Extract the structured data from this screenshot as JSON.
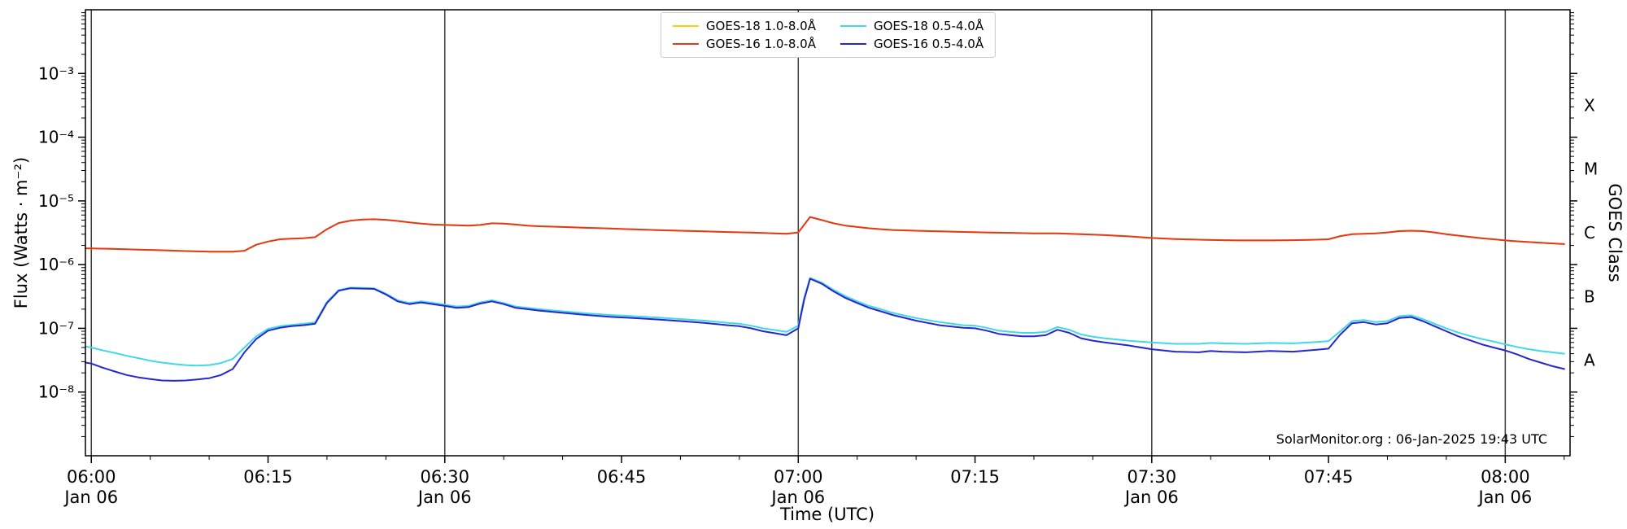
{
  "chart_data": {
    "type": "line",
    "title": "",
    "xlabel": "Time (UTC)",
    "ylabel": "Flux (Watts · m⁻²)",
    "ylabel_right": "GOES Class",
    "watermark": "SolarMonitor.org : 06-Jan-2025 19:43 UTC",
    "grid": "vertical-dividers-at-30min",
    "legend_position": "top-center",
    "x_axis": {
      "unit": "minutes after 06:00 UTC, 06-Jan-2025",
      "min": -0.5,
      "max": 125.5,
      "minor_tick_minutes": 5,
      "major_ticks": [
        {
          "t": 0,
          "label": "06:00",
          "sublabel": "Jan 06",
          "divider": true
        },
        {
          "t": 15,
          "label": "06:15",
          "sublabel": "",
          "divider": false
        },
        {
          "t": 30,
          "label": "06:30",
          "sublabel": "Jan 06",
          "divider": true
        },
        {
          "t": 45,
          "label": "06:45",
          "sublabel": "",
          "divider": false
        },
        {
          "t": 60,
          "label": "07:00",
          "sublabel": "Jan 06",
          "divider": true
        },
        {
          "t": 75,
          "label": "07:15",
          "sublabel": "",
          "divider": false
        },
        {
          "t": 90,
          "label": "07:30",
          "sublabel": "Jan 06",
          "divider": true
        },
        {
          "t": 105,
          "label": "07:45",
          "sublabel": "",
          "divider": false
        },
        {
          "t": 120,
          "label": "08:00",
          "sublabel": "Jan 06",
          "divider": true
        }
      ]
    },
    "y_axis": {
      "scale": "log",
      "min_log10": -9,
      "max_log10": -2,
      "major_tick_exps": [
        -3,
        -4,
        -5,
        -6,
        -7,
        -8
      ],
      "major_tick_labels": [
        "10⁻³",
        "10⁻⁴",
        "10⁻⁵",
        "10⁻⁶",
        "10⁻⁷",
        "10⁻⁸"
      ]
    },
    "goes_classes": [
      {
        "label": "X",
        "log10_mid": -3.5
      },
      {
        "label": "M",
        "log10_mid": -4.5
      },
      {
        "label": "C",
        "log10_mid": -5.5
      },
      {
        "label": "B",
        "log10_mid": -6.5
      },
      {
        "label": "A",
        "log10_mid": -7.5
      }
    ],
    "series": [
      {
        "id": "goes18-long",
        "name": "GOES-18 1.0-8.0Å",
        "color": "#ffcc00",
        "x": [
          -0.5,
          0,
          2,
          4,
          6,
          8,
          10,
          12,
          13,
          14,
          15,
          16,
          17,
          18,
          19,
          20,
          21,
          22,
          23,
          24,
          25,
          26,
          27,
          28,
          29,
          30,
          31,
          32,
          33,
          34,
          35,
          36,
          37,
          38,
          40,
          42,
          44,
          46,
          48,
          50,
          52,
          54,
          56,
          58,
          59,
          60,
          61,
          62,
          63,
          64,
          65,
          66,
          67,
          68,
          70,
          72,
          74,
          76,
          78,
          80,
          82,
          84,
          86,
          88,
          90,
          92,
          94,
          96,
          98,
          100,
          102,
          104,
          105,
          106,
          107,
          108,
          109,
          110,
          111,
          112,
          113,
          114,
          115,
          116,
          117,
          118,
          119,
          120,
          121,
          122,
          123,
          124,
          125
        ],
        "y": [
          1.8e-06,
          1.8e-06,
          1.76e-06,
          1.72e-06,
          1.68e-06,
          1.63e-06,
          1.6e-06,
          1.6e-06,
          1.65e-06,
          2.05e-06,
          2.3e-06,
          2.5e-06,
          2.55e-06,
          2.6e-06,
          2.7e-06,
          3.6e-06,
          4.5e-06,
          4.9e-06,
          5.1e-06,
          5.15e-06,
          5.05e-06,
          4.85e-06,
          4.6e-06,
          4.4e-06,
          4.25e-06,
          4.2e-06,
          4.15e-06,
          4.1e-06,
          4.2e-06,
          4.45e-06,
          4.4e-06,
          4.25e-06,
          4.1e-06,
          4e-06,
          3.9e-06,
          3.78e-06,
          3.68e-06,
          3.58e-06,
          3.48e-06,
          3.4e-06,
          3.32e-06,
          3.25e-06,
          3.18e-06,
          3.1e-06,
          3.05e-06,
          3.2e-06,
          5.6e-06,
          5e-06,
          4.45e-06,
          4.1e-06,
          3.9e-06,
          3.72e-06,
          3.6e-06,
          3.5e-06,
          3.4e-06,
          3.32e-06,
          3.26e-06,
          3.2e-06,
          3.15e-06,
          3.1e-06,
          3.1e-06,
          3e-06,
          2.9e-06,
          2.78e-06,
          2.62e-06,
          2.52e-06,
          2.46e-06,
          2.42e-06,
          2.4e-06,
          2.4e-06,
          2.42e-06,
          2.46e-06,
          2.5e-06,
          2.8e-06,
          3e-06,
          3.05e-06,
          3.1e-06,
          3.2e-06,
          3.35e-06,
          3.4e-06,
          3.35e-06,
          3.2e-06,
          3e-06,
          2.85e-06,
          2.72e-06,
          2.6e-06,
          2.5e-06,
          2.4e-06,
          2.32e-06,
          2.26e-06,
          2.2e-06,
          2.15e-06,
          2.1e-06
        ]
      },
      {
        "id": "goes16-long",
        "name": "GOES-16 1.0-8.0Å",
        "color": "#e23a1e",
        "x": [
          -0.5,
          0,
          2,
          4,
          6,
          8,
          10,
          12,
          13,
          14,
          15,
          16,
          17,
          18,
          19,
          20,
          21,
          22,
          23,
          24,
          25,
          26,
          27,
          28,
          29,
          30,
          31,
          32,
          33,
          34,
          35,
          36,
          37,
          38,
          40,
          42,
          44,
          46,
          48,
          50,
          52,
          54,
          56,
          58,
          59,
          60,
          61,
          62,
          63,
          64,
          65,
          66,
          67,
          68,
          70,
          72,
          74,
          76,
          78,
          80,
          82,
          84,
          86,
          88,
          90,
          92,
          94,
          96,
          98,
          100,
          102,
          104,
          105,
          106,
          107,
          108,
          109,
          110,
          111,
          112,
          113,
          114,
          115,
          116,
          117,
          118,
          119,
          120,
          121,
          122,
          123,
          124,
          125
        ],
        "y": [
          1.8e-06,
          1.8e-06,
          1.76e-06,
          1.72e-06,
          1.68e-06,
          1.63e-06,
          1.6e-06,
          1.6e-06,
          1.65e-06,
          2.05e-06,
          2.3e-06,
          2.5e-06,
          2.55e-06,
          2.6e-06,
          2.7e-06,
          3.6e-06,
          4.5e-06,
          4.9e-06,
          5.1e-06,
          5.15e-06,
          5.05e-06,
          4.85e-06,
          4.6e-06,
          4.4e-06,
          4.25e-06,
          4.2e-06,
          4.15e-06,
          4.1e-06,
          4.2e-06,
          4.45e-06,
          4.4e-06,
          4.25e-06,
          4.1e-06,
          4e-06,
          3.9e-06,
          3.78e-06,
          3.68e-06,
          3.58e-06,
          3.48e-06,
          3.4e-06,
          3.32e-06,
          3.25e-06,
          3.18e-06,
          3.1e-06,
          3.05e-06,
          3.2e-06,
          5.6e-06,
          5e-06,
          4.45e-06,
          4.1e-06,
          3.9e-06,
          3.72e-06,
          3.6e-06,
          3.5e-06,
          3.4e-06,
          3.32e-06,
          3.26e-06,
          3.2e-06,
          3.15e-06,
          3.1e-06,
          3.1e-06,
          3e-06,
          2.9e-06,
          2.78e-06,
          2.62e-06,
          2.52e-06,
          2.46e-06,
          2.42e-06,
          2.4e-06,
          2.4e-06,
          2.42e-06,
          2.46e-06,
          2.5e-06,
          2.8e-06,
          3e-06,
          3.05e-06,
          3.1e-06,
          3.2e-06,
          3.35e-06,
          3.4e-06,
          3.35e-06,
          3.2e-06,
          3e-06,
          2.85e-06,
          2.72e-06,
          2.6e-06,
          2.5e-06,
          2.4e-06,
          2.32e-06,
          2.26e-06,
          2.2e-06,
          2.15e-06,
          2.1e-06
        ]
      },
      {
        "id": "goes18-short",
        "name": "GOES-18 0.5-4.0Å",
        "color": "#3fd9e8",
        "x": [
          -0.5,
          0,
          1,
          2,
          3,
          4,
          5,
          6,
          7,
          8,
          9,
          10,
          11,
          12,
          13,
          14,
          15,
          16,
          17,
          18,
          19,
          20,
          21,
          22,
          23,
          24,
          25,
          26,
          27,
          28,
          29,
          30,
          31,
          32,
          33,
          34,
          35,
          36,
          37,
          38,
          40,
          42,
          44,
          46,
          48,
          50,
          52,
          54,
          55,
          56,
          57,
          58,
          59,
          60,
          60.5,
          61,
          62,
          63,
          64,
          65,
          66,
          67,
          68,
          70,
          72,
          74,
          75,
          76,
          77,
          78,
          79,
          80,
          81,
          82,
          83,
          84,
          85,
          86,
          88,
          90,
          92,
          94,
          95,
          96,
          98,
          100,
          102,
          104,
          105,
          106,
          107,
          108,
          109,
          110,
          111,
          112,
          113,
          114,
          115,
          116,
          117,
          118,
          119,
          120,
          121,
          122,
          123,
          124,
          125
        ],
        "y": [
          5.2e-08,
          5e-08,
          4.5e-08,
          4.1e-08,
          3.7e-08,
          3.4e-08,
          3.1e-08,
          2.9e-08,
          2.75e-08,
          2.65e-08,
          2.6e-08,
          2.65e-08,
          2.85e-08,
          3.3e-08,
          5e-08,
          7.5e-08,
          9.8e-08,
          1.08e-07,
          1.13e-07,
          1.18e-07,
          1.24e-07,
          2.6e-07,
          4e-07,
          4.35e-07,
          4.3e-07,
          4.25e-07,
          3.5e-07,
          2.75e-07,
          2.5e-07,
          2.65e-07,
          2.5e-07,
          2.35e-07,
          2.2e-07,
          2.25e-07,
          2.55e-07,
          2.75e-07,
          2.5e-07,
          2.2e-07,
          2.1e-07,
          2e-07,
          1.85e-07,
          1.72e-07,
          1.62e-07,
          1.55e-07,
          1.48e-07,
          1.4e-07,
          1.32e-07,
          1.22e-07,
          1.18e-07,
          1.1e-07,
          1e-07,
          9.4e-08,
          8.8e-08,
          1.1e-07,
          3e-07,
          6.2e-07,
          5.2e-07,
          4e-07,
          3.2e-07,
          2.65e-07,
          2.25e-07,
          2e-07,
          1.75e-07,
          1.45e-07,
          1.25e-07,
          1.12e-07,
          1.1e-07,
          1.02e-07,
          9.2e-08,
          8.8e-08,
          8.5e-08,
          8.5e-08,
          8.8e-08,
          1.05e-07,
          9.5e-08,
          8e-08,
          7.4e-08,
          7e-08,
          6.4e-08,
          6e-08,
          5.7e-08,
          5.7e-08,
          5.9e-08,
          5.8e-08,
          5.7e-08,
          5.9e-08,
          5.8e-08,
          6.1e-08,
          6.3e-08,
          9e-08,
          1.3e-07,
          1.35e-07,
          1.25e-07,
          1.3e-07,
          1.55e-07,
          1.6e-07,
          1.4e-07,
          1.18e-07,
          1e-07,
          8.6e-08,
          7.6e-08,
          6.8e-08,
          6.2e-08,
          5.6e-08,
          5.1e-08,
          4.7e-08,
          4.4e-08,
          4.2e-08,
          4e-08
        ]
      },
      {
        "id": "goes16-short",
        "name": "GOES-16 0.5-4.0Å",
        "color": "#2727cc",
        "x": [
          -0.5,
          0,
          1,
          2,
          3,
          4,
          5,
          6,
          7,
          8,
          9,
          10,
          11,
          12,
          13,
          14,
          15,
          16,
          17,
          18,
          19,
          20,
          21,
          22,
          23,
          24,
          25,
          26,
          27,
          28,
          29,
          30,
          31,
          32,
          33,
          34,
          35,
          36,
          37,
          38,
          40,
          42,
          44,
          46,
          48,
          50,
          52,
          54,
          55,
          56,
          57,
          58,
          59,
          60,
          60.5,
          61,
          62,
          63,
          64,
          65,
          66,
          67,
          68,
          70,
          72,
          74,
          75,
          76,
          77,
          78,
          79,
          80,
          81,
          82,
          83,
          84,
          85,
          86,
          88,
          90,
          92,
          94,
          95,
          96,
          98,
          100,
          102,
          104,
          105,
          106,
          107,
          108,
          109,
          110,
          111,
          112,
          113,
          114,
          115,
          116,
          117,
          118,
          119,
          120,
          121,
          122,
          123,
          124,
          125
        ],
        "y": [
          2.9e-08,
          2.8e-08,
          2.4e-08,
          2.1e-08,
          1.85e-08,
          1.7e-08,
          1.6e-08,
          1.52e-08,
          1.5e-08,
          1.52e-08,
          1.58e-08,
          1.65e-08,
          1.85e-08,
          2.3e-08,
          4.2e-08,
          6.8e-08,
          9.2e-08,
          1.02e-07,
          1.08e-07,
          1.12e-07,
          1.18e-07,
          2.5e-07,
          3.9e-07,
          4.25e-07,
          4.2e-07,
          4.15e-07,
          3.4e-07,
          2.65e-07,
          2.4e-07,
          2.55e-07,
          2.4e-07,
          2.25e-07,
          2.1e-07,
          2.15e-07,
          2.45e-07,
          2.65e-07,
          2.4e-07,
          2.1e-07,
          2e-07,
          1.9e-07,
          1.75e-07,
          1.62e-07,
          1.52e-07,
          1.45e-07,
          1.38e-07,
          1.3e-07,
          1.22e-07,
          1.12e-07,
          1.08e-07,
          1e-07,
          9e-08,
          8.4e-08,
          7.8e-08,
          1e-07,
          2.8e-07,
          6e-07,
          5e-07,
          3.8e-07,
          3e-07,
          2.5e-07,
          2.1e-07,
          1.85e-07,
          1.62e-07,
          1.32e-07,
          1.12e-07,
          1.02e-07,
          1e-07,
          9.2e-08,
          8.2e-08,
          7.8e-08,
          7.5e-08,
          7.5e-08,
          7.8e-08,
          9.5e-08,
          8.5e-08,
          7e-08,
          6.4e-08,
          6e-08,
          5.4e-08,
          4.7e-08,
          4.3e-08,
          4.2e-08,
          4.4e-08,
          4.3e-08,
          4.2e-08,
          4.4e-08,
          4.3e-08,
          4.6e-08,
          4.8e-08,
          8e-08,
          1.2e-07,
          1.25e-07,
          1.15e-07,
          1.2e-07,
          1.45e-07,
          1.5e-07,
          1.3e-07,
          1.08e-07,
          9e-08,
          7.5e-08,
          6.5e-08,
          5.6e-08,
          5e-08,
          4.5e-08,
          3.9e-08,
          3.3e-08,
          2.9e-08,
          2.55e-08,
          2.3e-08
        ]
      }
    ]
  }
}
